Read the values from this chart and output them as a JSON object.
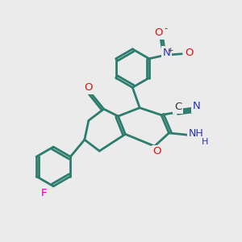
{
  "background_color": "#ebebeb",
  "bond_color": "#2d7d6e",
  "bond_width": 2.0,
  "atom_colors": {
    "O": "#dd1111",
    "N": "#2233bb",
    "F": "#cc00cc",
    "C": "#333333",
    "default": "#2d7d6e"
  },
  "font_size": 9.5
}
